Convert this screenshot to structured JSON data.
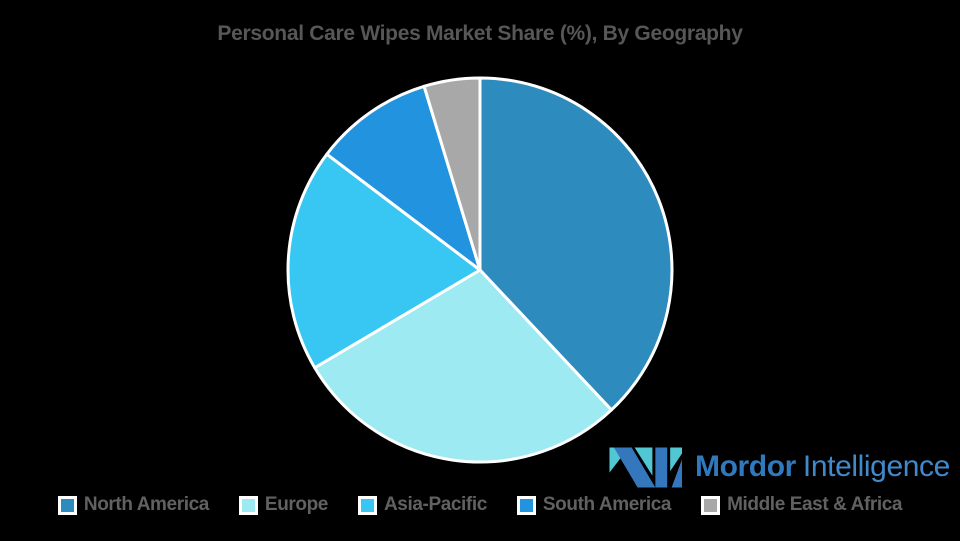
{
  "title": "Personal Care Wipes Market Share (%), By Geography",
  "colors": {
    "background": "#000000",
    "title_text": "#575757",
    "legend_text": "#616161",
    "slice_border": "#ffffff"
  },
  "chart_data": {
    "type": "pie",
    "title": "Personal Care Wipes Market Share (%), By Geography",
    "categories": [
      "North America",
      "Europe",
      "Asia-Pacific",
      "South America",
      "Middle East & Africa"
    ],
    "values": [
      38,
      28.5,
      18.8,
      10,
      4.7
    ],
    "unit": "%",
    "colors": [
      "#2E8BBE",
      "#9DEAF2",
      "#38C6F2",
      "#2193DF",
      "#A8A8A8"
    ],
    "start_angle_deg": 0,
    "direction": "clockwise",
    "legend_position": "bottom",
    "data_labels_shown": false
  },
  "legend": {
    "items": [
      {
        "label": "North America",
        "color": "#2E8BBE"
      },
      {
        "label": "Europe",
        "color": "#9DEAF2"
      },
      {
        "label": "Asia-Pacific",
        "color": "#38C6F2"
      },
      {
        "label": "South America",
        "color": "#2193DF"
      },
      {
        "label": "Middle East & Africa",
        "color": "#A8A8A8"
      }
    ]
  },
  "logo": {
    "brand_bold": "Mordor",
    "brand_regular": "Intelligence",
    "mark_teal": "#50C7D2",
    "mark_blue": "#3577BD",
    "text_color_bold": "#2F79BC",
    "text_color_regular": "#4089CB"
  }
}
